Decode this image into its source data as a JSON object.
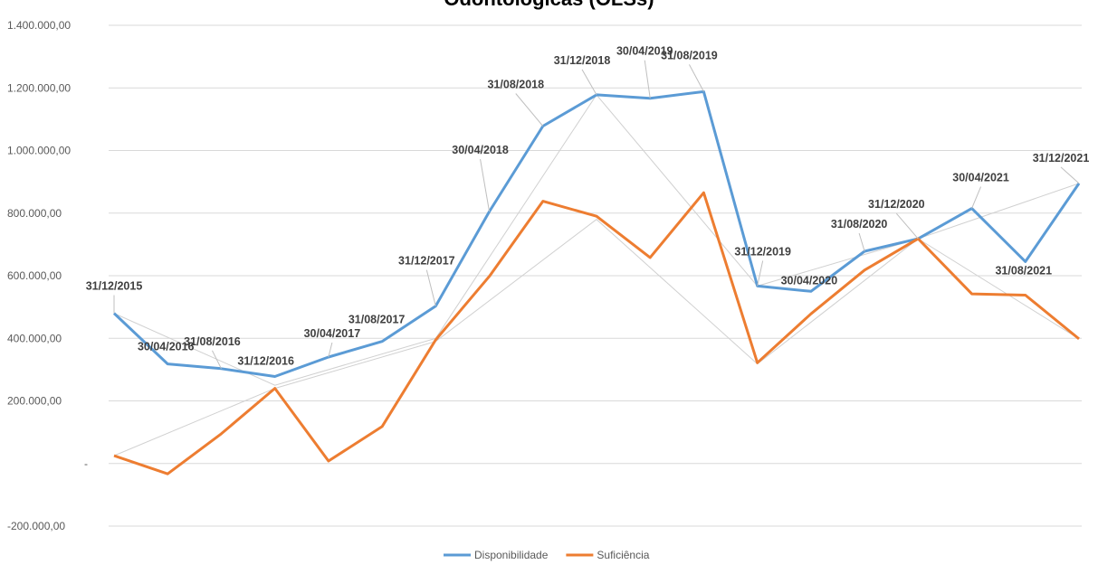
{
  "chart_data": {
    "type": "line",
    "title": "Odontológicas (OLSs)",
    "categories": [
      "31/12/2015",
      "30/04/2016",
      "31/08/2016",
      "31/12/2016",
      "30/04/2017",
      "31/08/2017",
      "31/12/2017",
      "30/04/2018",
      "31/08/2018",
      "31/12/2018",
      "30/04/2019",
      "31/08/2019",
      "31/12/2019",
      "30/04/2020",
      "31/08/2020",
      "31/12/2020",
      "30/04/2021",
      "31/08/2021",
      "31/12/2021"
    ],
    "series": [
      {
        "name": "Disponibilidade",
        "color": "#5B9BD5",
        "values": [
          480000,
          318000,
          303000,
          278000,
          340000,
          390000,
          503000,
          805000,
          1078000,
          1178000,
          1167000,
          1188000,
          567000,
          550000,
          678000,
          718000,
          815000,
          645000,
          895000
        ]
      },
      {
        "name": "Suficiência",
        "color": "#ED7D31",
        "values": [
          25000,
          -33000,
          95000,
          240000,
          8000,
          118000,
          395000,
          598000,
          838000,
          790000,
          658000,
          865000,
          322000,
          478000,
          618000,
          718000,
          542000,
          538000,
          398000
        ]
      }
    ],
    "y_ticks": [
      "1.400.000,00",
      "1.200.000,00",
      "1.000.000,00",
      "800.000,00",
      "600.000,00",
      "400.000,00",
      "200.000,00",
      "-",
      "-200.000,00"
    ],
    "ylim": [
      -200000,
      1400000
    ],
    "grid": true,
    "legend_position": "bottom",
    "gray_line_values": [
      25000,
      null,
      null,
      240000,
      null,
      null,
      390000,
      null,
      null,
      780000,
      null,
      null,
      318000,
      null,
      null,
      718000,
      null,
      null,
      398000
    ],
    "gray_line_values_2": [
      480000,
      null,
      null,
      250000,
      null,
      null,
      400000,
      null,
      null,
      1178000,
      null,
      null,
      567000,
      null,
      null,
      718000,
      null,
      null,
      895000
    ]
  }
}
